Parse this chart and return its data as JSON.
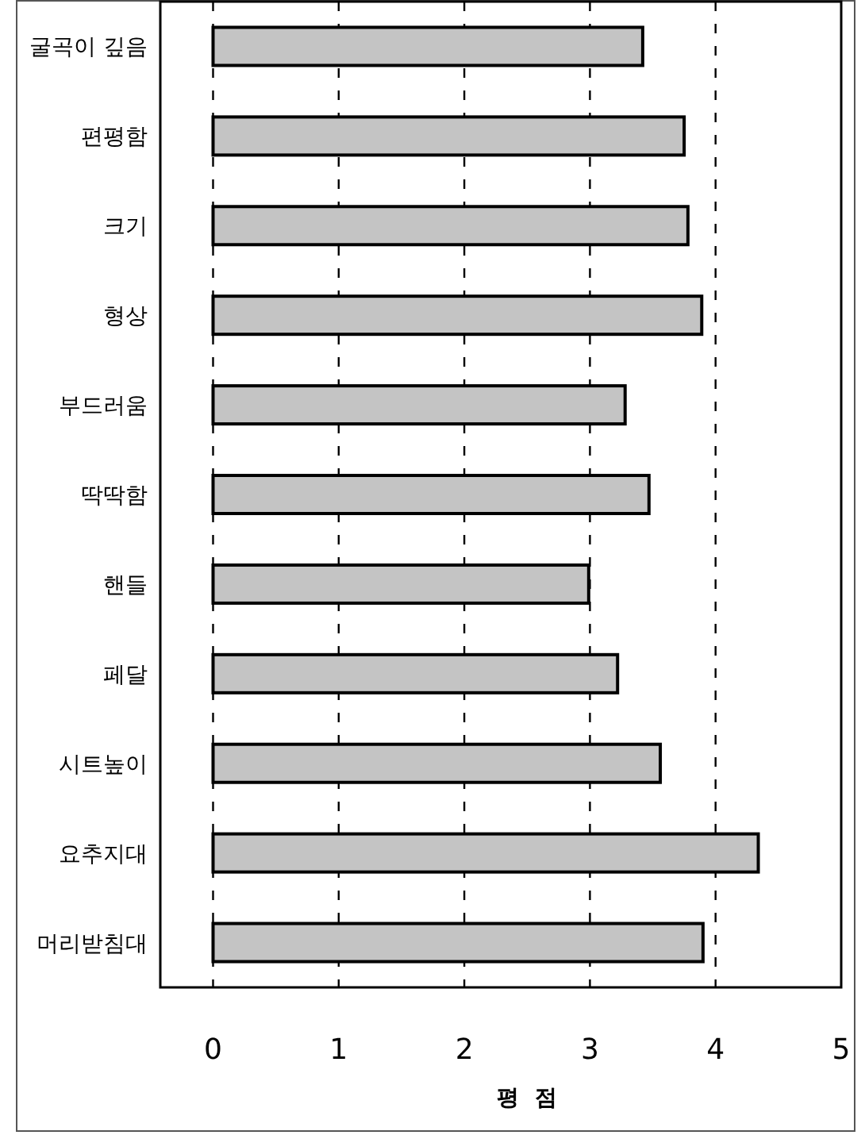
{
  "chart_data": {
    "type": "bar",
    "orientation": "horizontal",
    "categories": [
      "굴곡이 깊음",
      "편평함",
      "크기",
      "형상",
      "부드러움",
      "딱딱함",
      "핸들",
      "페달",
      "시트높이",
      "요추지대",
      "머리받침대"
    ],
    "values": [
      3.42,
      3.75,
      3.78,
      3.89,
      3.28,
      3.47,
      2.99,
      3.22,
      3.56,
      4.34,
      3.9
    ],
    "color": "#c4c4c4",
    "xlabel": "평  점",
    "xlim": [
      -0.42,
      5
    ],
    "xticks": [
      0,
      1,
      2,
      3,
      4,
      5
    ],
    "grid": "x",
    "line_style": "dashed"
  }
}
